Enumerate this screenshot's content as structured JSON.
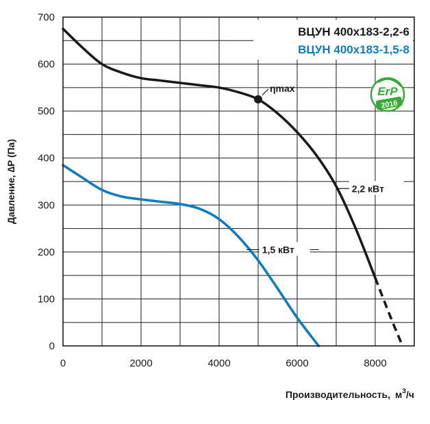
{
  "chart_data": {
    "type": "line",
    "xlabel": "Производительность,",
    "xlabel_unit_base": "м",
    "xlabel_unit_sup": "3",
    "xlabel_unit_tail": "/ч",
    "ylabel": "Давление, ∆P (Па)",
    "xlim": [
      0,
      9000
    ],
    "ylim": [
      0,
      700
    ],
    "x_ticks": [
      "0",
      "2000",
      "4000",
      "6000",
      "8000"
    ],
    "y_ticks": [
      "0",
      "100",
      "200",
      "300",
      "400",
      "500",
      "600",
      "700"
    ],
    "grid": true,
    "legend_position": "top-right",
    "series": [
      {
        "name": "ВЦУН 400x183-2,2-6",
        "color": "#1a1a1a",
        "label": "2,2 кВт",
        "x": [
          0,
          500,
          1000,
          1500,
          2000,
          2500,
          3000,
          3500,
          4000,
          4500,
          5000,
          5500,
          6000,
          6500,
          7000,
          7500,
          8000
        ],
        "y": [
          675,
          635,
          600,
          582,
          570,
          565,
          560,
          555,
          550,
          540,
          525,
          495,
          455,
          405,
          340,
          250,
          145
        ],
        "dashed_x": [
          8000,
          8400,
          8700
        ],
        "dashed_y": [
          145,
          60,
          0
        ]
      },
      {
        "name": "ВЦУН 400x183-1,5-8",
        "color": "#0d7cc1",
        "label": "1,5 кВт",
        "x": [
          0,
          500,
          1000,
          1500,
          2000,
          2500,
          3000,
          3500,
          4000,
          4500,
          5000,
          5500,
          6000,
          6550
        ],
        "y": [
          385,
          358,
          332,
          318,
          312,
          307,
          302,
          292,
          270,
          232,
          182,
          122,
          60,
          0
        ]
      }
    ],
    "annotations": [
      {
        "text": "ηmax",
        "x": 5000,
        "y": 525
      }
    ],
    "badge": {
      "top": "ErP",
      "bottom": "2016",
      "color": "#39a935"
    }
  }
}
